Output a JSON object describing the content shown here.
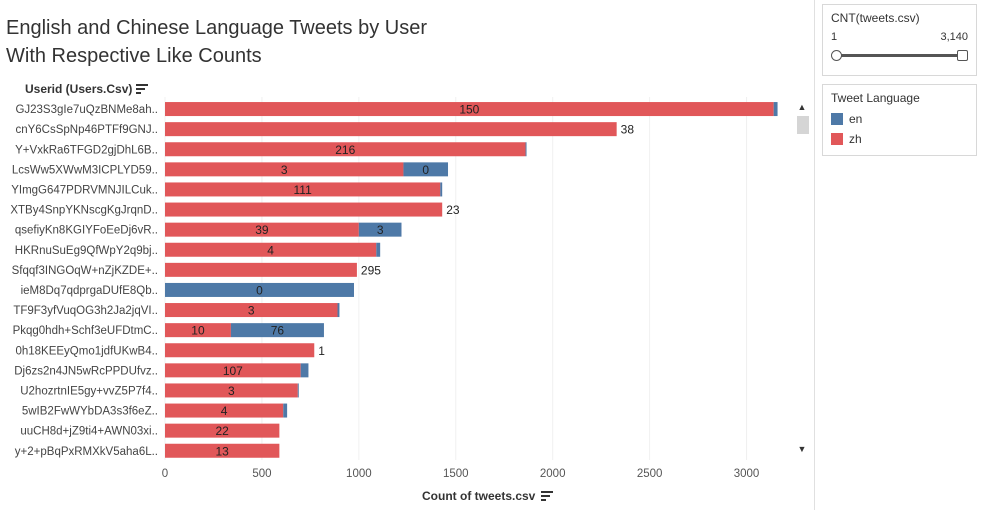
{
  "title_line1": "English and Chinese Language Tweets by User",
  "title_line2": "With Respective Like Counts",
  "y_header": "Userid (Users.Csv)",
  "x_title": "Count of tweets.csv",
  "filter": {
    "title": "CNT(tweets.csv)",
    "min": "1",
    "max": "3,140"
  },
  "legend": {
    "title": "Tweet Language",
    "items": [
      {
        "label": "en",
        "color": "#4e79a7"
      },
      {
        "label": "zh",
        "color": "#e15759"
      }
    ]
  },
  "scroll": {
    "up": "▲",
    "down": "▼"
  },
  "chart_data": {
    "type": "bar",
    "orientation": "horizontal",
    "stacked": true,
    "xlim": [
      0,
      3250
    ],
    "xticks": [
      0,
      500,
      1000,
      1500,
      2000,
      2500,
      3000
    ],
    "categories": [
      "GJ23S3gIe7uQzBNMe8ah..",
      "cnY6CsSpNp46PTFf9GNJ..",
      "Y+VxkRa6TFGD2gjDhL6B..",
      "LcsWw5XWwM3ICPLYD59..",
      "YImgG647PDRVMNJILCuk..",
      "XTBy4SnpYKNscgKgJrqnD..",
      "qsefiyKn8KGIYFoEeDj6vR..",
      "HKRnuSuEg9QfWpY2q9bj..",
      "Sfqqf3INGOqW+nZjKZDE+..",
      "ieM8Dq7qdprgaDUfE8Qb..",
      "TF9F3yfVuqOG3h2Ja2jqVI..",
      "Pkqg0hdh+Schf3eUFDtmC..",
      "0h18KEEyQmo1jdfUKwB4..",
      "Dj6zs2n4JN5wRcPPDUfvz..",
      "U2hozrtnIE5gy+vvZ5P7f4..",
      "5wIB2FwWYbDA3s3f6eZ..",
      "uuCH8d+jZ9ti4+AWN03xi..",
      "y+2+pBqPxRMXkV5aha6L.."
    ],
    "series": [
      {
        "name": "zh",
        "values": [
          3140,
          2330,
          1860,
          1230,
          1420,
          1430,
          1000,
          1090,
          990,
          0,
          890,
          340,
          770,
          700,
          685,
          610,
          590,
          590
        ]
      },
      {
        "name": "en",
        "values": [
          20,
          0,
          5,
          230,
          10,
          0,
          220,
          20,
          0,
          975,
          10,
          480,
          0,
          40,
          5,
          20,
          0,
          0
        ]
      }
    ],
    "data_labels": [
      "150",
      "38",
      "216",
      "0",
      "111",
      "23",
      "3",
      "4",
      "295",
      "0",
      "3",
      "76",
      "1",
      "107",
      "3",
      "4",
      "22",
      "13"
    ],
    "label_positions": [
      "inside-zh",
      "outside",
      "inside-zh",
      "inside-en",
      "inside-zh",
      "outside",
      "inside-en",
      "inside-zh",
      "outside",
      "inside-en",
      "inside-zh",
      "inside-en",
      "outside",
      "inside-zh",
      "inside-zh",
      "inside-zh",
      "inside-zh",
      "inside-zh"
    ],
    "extra_labels": {
      "3": "3",
      "11": "10",
      "6": "39"
    }
  }
}
